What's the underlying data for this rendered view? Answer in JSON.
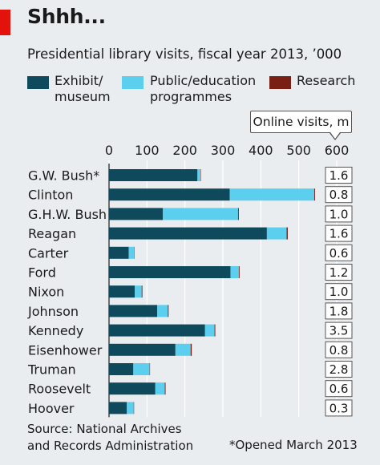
{
  "title": "Shhh...",
  "subtitle": "Presidential library visits, fiscal year 2013, ’000",
  "legend": [
    {
      "line1": "Exhibit/",
      "line2": "museum",
      "color": "#0f4a5c"
    },
    {
      "line1": "Public/education",
      "line2": "programmes",
      "color": "#5ccfee"
    },
    {
      "line1": "Research",
      "line2": "",
      "color": "#7a1f14"
    }
  ],
  "online_header": "Online visits, m",
  "source": {
    "line1": "Source: National Archives",
    "line2": "and Records Administration"
  },
  "footnote": "*Opened March 2013",
  "chart_data": {
    "type": "bar",
    "orientation": "horizontal",
    "stacked": true,
    "xlim": [
      0,
      600
    ],
    "x_ticks": [
      "0",
      "100",
      "200",
      "300",
      "400",
      "500",
      "600"
    ],
    "categories": [
      "G.W. Bush*",
      "Clinton",
      "G.H.W. Bush",
      "Reagan",
      "Carter",
      "Ford",
      "Nixon",
      "Johnson",
      "Kennedy",
      "Eisenhower",
      "Truman",
      "Roosevelt",
      "Hoover"
    ],
    "series": [
      {
        "name": "Exhibit/museum",
        "color": "#0f4a5c",
        "values": [
          233,
          318,
          142,
          416,
          52,
          320,
          68,
          127,
          253,
          175,
          64,
          122,
          47
        ]
      },
      {
        "name": "Public/education programmes",
        "color": "#5ccfee",
        "values": [
          8,
          223,
          198,
          52,
          14,
          22,
          18,
          28,
          25,
          40,
          43,
          25,
          18
        ]
      },
      {
        "name": "Research",
        "color": "#7a1f14",
        "values": [
          1,
          2,
          2,
          3,
          1,
          2,
          2,
          2,
          2,
          3,
          1,
          2,
          1
        ]
      }
    ],
    "online_visits": [
      "1.6",
      "0.8",
      "1.0",
      "1.6",
      "0.6",
      "1.2",
      "1.0",
      "1.8",
      "3.5",
      "0.8",
      "2.8",
      "0.6",
      "0.3"
    ]
  }
}
